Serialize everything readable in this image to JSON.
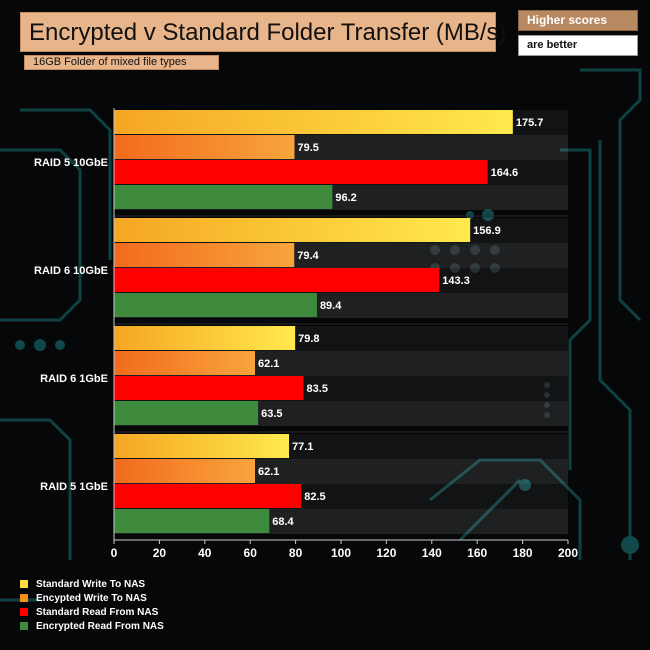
{
  "title": "Encrypted v Standard Folder Transfer (MB/s)",
  "subtitle": "16GB Folder of mixed file types",
  "notes": [
    "Higher scores",
    "are better"
  ],
  "colors": {
    "standard_write": "#ffd83a",
    "encrypted_write": "#f5901e",
    "standard_read": "#ff0000",
    "encrypted_read": "#3d8a3d"
  },
  "chart_data": {
    "type": "bar",
    "orientation": "horizontal",
    "categories": [
      "RAID 5 10GbE",
      "RAID 6 10GbE",
      "RAID 6 1GbE",
      "RAID 5 1GbE"
    ],
    "series": [
      {
        "name": "Standard Write To NAS",
        "values": [
          175.7,
          156.9,
          79.8,
          77.1
        ]
      },
      {
        "name": "Encypted Write To NAS",
        "values": [
          79.5,
          79.4,
          62.1,
          62.1
        ]
      },
      {
        "name": "Standard Read From NAS",
        "values": [
          164.6,
          143.3,
          83.5,
          82.5
        ]
      },
      {
        "name": "Encrypted Read From NAS",
        "values": [
          96.2,
          89.4,
          63.5,
          68.4
        ]
      }
    ],
    "xlim": [
      0,
      200
    ],
    "xticks": [
      0,
      20,
      40,
      60,
      80,
      100,
      120,
      140,
      160,
      180,
      200
    ],
    "title": "Encrypted v Standard Folder Transfer (MB/s)",
    "xlabel": "",
    "ylabel": "",
    "grid": false,
    "legend_position": "bottom-left"
  }
}
